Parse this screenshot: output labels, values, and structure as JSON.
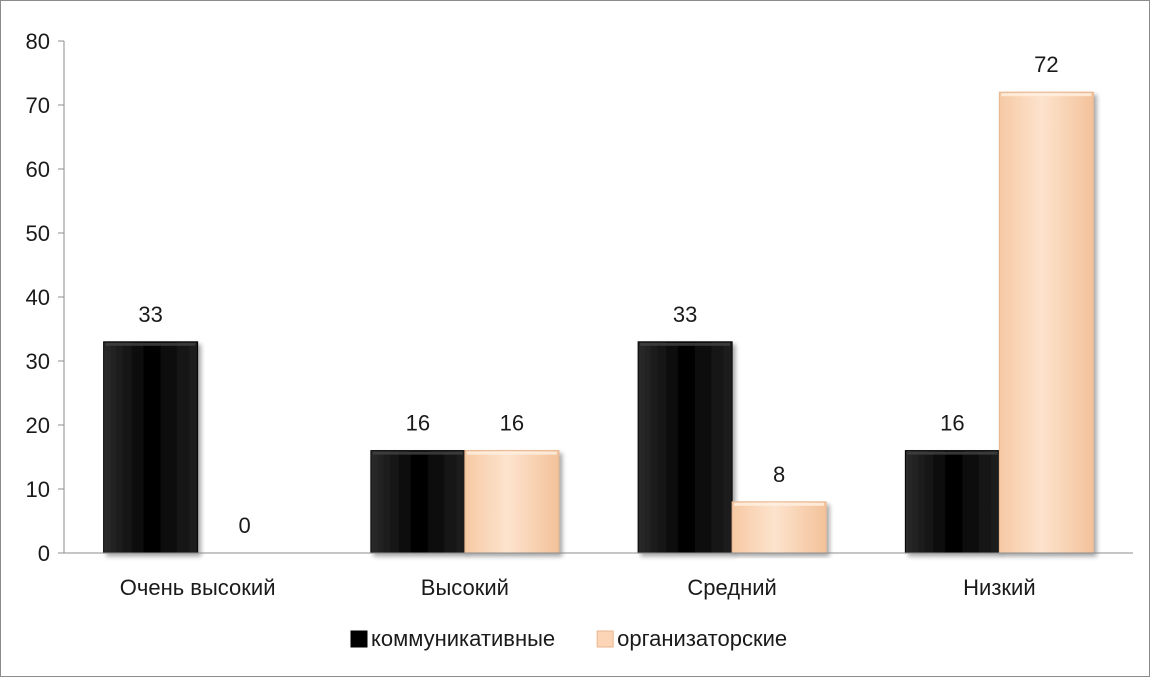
{
  "chart_data": {
    "type": "bar",
    "title": "",
    "xlabel": "",
    "ylabel": "",
    "categories": [
      "Очень высокий",
      "Высокий",
      "Средний",
      "Низкий"
    ],
    "series": [
      {
        "name": "коммуникативные",
        "color": "#000000",
        "values": [
          33,
          16,
          33,
          16
        ]
      },
      {
        "name": "организаторские",
        "color": "#fbd5b5",
        "values": [
          0,
          16,
          8,
          72
        ]
      }
    ],
    "ylim": [
      0,
      80
    ],
    "yticks": [
      0,
      10,
      20,
      30,
      40,
      50,
      60,
      70,
      80
    ],
    "grid": false,
    "data_labels": true,
    "legend": {
      "position": "bottom"
    }
  }
}
